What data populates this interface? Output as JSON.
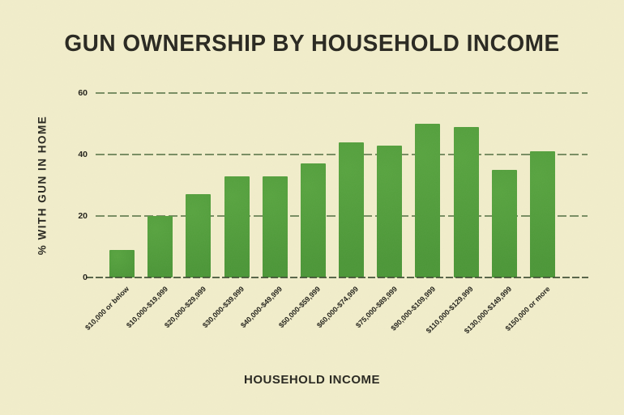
{
  "chart_data": {
    "type": "bar",
    "title": "GUN OWNERSHIP BY HOUSEHOLD INCOME",
    "xlabel": "HOUSEHOLD INCOME",
    "ylabel": "% WITH GUN IN HOME",
    "categories": [
      "$10,000 or below",
      "$10,000-$19,999",
      "$20,000-$29,999",
      "$30,000-$39,999",
      "$40,000-$49,999",
      "$50,000-$59,999",
      "$60,000-$74,999",
      "$75,000-$89,999",
      "$90,000-$109,999",
      "$110,000-$129,999",
      "$130,000-$149,999",
      "$150,000 or more"
    ],
    "values": [
      9,
      20,
      27,
      33,
      33,
      37,
      44,
      43,
      50,
      49,
      35,
      41
    ],
    "yticks": [
      0,
      20,
      40,
      60
    ],
    "ylim": [
      0,
      60
    ],
    "grid": true,
    "legend": false,
    "bar_color": "#56a33e",
    "bar_color_dark": "#4a9636",
    "grid_color": "#4e6c3e",
    "text_color": "#26251e",
    "background_color": "#f2eecb"
  }
}
